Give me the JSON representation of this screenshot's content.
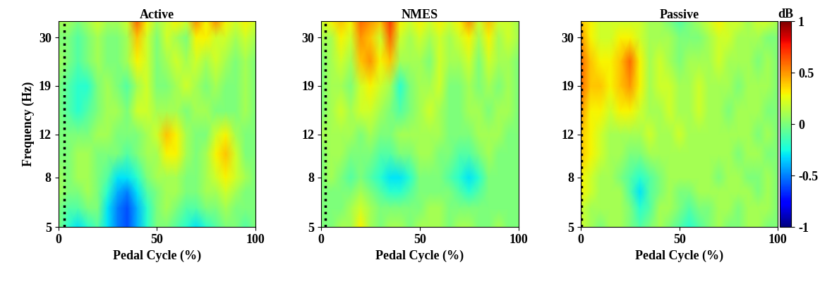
{
  "chart_data": [
    {
      "type": "heatmap",
      "title": "Active",
      "xlabel": "Pedal Cycle (%)",
      "ylabel": "Frequency (Hz)",
      "color": "jet",
      "log": "y",
      "event_x": 3,
      "line_style": "dotted",
      "x": [
        0,
        5,
        10,
        15,
        20,
        25,
        30,
        35,
        40,
        45,
        50,
        55,
        60,
        65,
        70,
        75,
        80,
        85,
        90,
        95,
        100
      ],
      "y": [
        5,
        6,
        7,
        8,
        10,
        12,
        15,
        19,
        24,
        30,
        35
      ],
      "xlim": [
        0,
        100
      ],
      "xticks": [
        0,
        50,
        100
      ],
      "ylim": [
        5,
        35
      ],
      "yticks": [
        5,
        8,
        12,
        19,
        30
      ],
      "values": [
        [
          0,
          -0.2,
          -0.3,
          -0.2,
          -0.1,
          -0.3,
          -0.5,
          -0.6,
          -0.4,
          -0.2,
          0,
          0,
          -0.1,
          -0.2,
          -0.3,
          -0.2,
          -0.1,
          0,
          0,
          -0.1,
          0
        ],
        [
          0,
          -0.1,
          -0.1,
          0,
          0,
          -0.3,
          -0.5,
          -0.6,
          -0.4,
          -0.2,
          0,
          0.1,
          0,
          -0.1,
          -0.1,
          0,
          0,
          0.1,
          0,
          0,
          0
        ],
        [
          0.1,
          0,
          0,
          0.1,
          0,
          -0.2,
          -0.4,
          -0.5,
          -0.3,
          -0.1,
          0,
          0.1,
          0.1,
          0,
          0,
          0.1,
          0.1,
          0.2,
          0.1,
          0,
          0
        ],
        [
          0.1,
          0,
          0.1,
          0.1,
          0,
          -0.1,
          -0.3,
          -0.3,
          -0.2,
          0,
          0.1,
          0.1,
          0.1,
          0,
          0,
          0.1,
          0.2,
          0.3,
          0.2,
          0.1,
          0
        ],
        [
          0,
          0,
          0.1,
          0.1,
          0,
          0,
          0,
          -0.1,
          0,
          0.1,
          0.1,
          0.3,
          0.3,
          0.1,
          0,
          0.1,
          0.3,
          0.4,
          0.2,
          0,
          0
        ],
        [
          0,
          0,
          0,
          0,
          0.1,
          0.1,
          0,
          0,
          0,
          0.1,
          0.2,
          0.4,
          0.3,
          0.1,
          0,
          0,
          0.2,
          0.3,
          0.1,
          0,
          0
        ],
        [
          0,
          -0.1,
          -0.2,
          -0.1,
          0,
          0.1,
          0.1,
          0,
          0.2,
          0.2,
          0.1,
          0.1,
          0.1,
          0,
          0.1,
          0.1,
          0,
          0,
          0,
          0.1,
          0
        ],
        [
          0,
          -0.1,
          -0.2,
          -0.2,
          0,
          0.1,
          0,
          -0.1,
          0.1,
          0.2,
          0,
          0,
          0.1,
          0.2,
          0.1,
          0,
          0.1,
          0,
          0,
          0.1,
          0
        ],
        [
          0.1,
          0,
          -0.1,
          0,
          0.1,
          0,
          0,
          0.1,
          0.3,
          0.2,
          0,
          0.1,
          0.2,
          0.1,
          0.2,
          0.1,
          0.2,
          0.1,
          0,
          0.1,
          0
        ],
        [
          0,
          0,
          -0.1,
          0,
          0.1,
          0,
          0,
          0.1,
          0.4,
          0.2,
          0,
          0.2,
          0.1,
          0,
          0.3,
          0.3,
          0.2,
          0.2,
          0.1,
          0.2,
          0.1
        ],
        [
          0.1,
          0.1,
          0,
          0.1,
          0.2,
          0.1,
          0.1,
          0.2,
          0.6,
          0.3,
          0.1,
          0.2,
          0.3,
          0.2,
          0.5,
          0.3,
          0.5,
          0.3,
          0.2,
          0.3,
          0.2
        ]
      ]
    },
    {
      "type": "heatmap",
      "title": "NMES",
      "xlabel": "Pedal Cycle (%)",
      "color": "jet",
      "log": "y",
      "event_x": 2,
      "line_style": "dotted",
      "x": [
        0,
        5,
        10,
        15,
        20,
        25,
        30,
        35,
        40,
        45,
        50,
        55,
        60,
        65,
        70,
        75,
        80,
        85,
        90,
        95,
        100
      ],
      "y": [
        5,
        6,
        7,
        8,
        10,
        12,
        15,
        19,
        24,
        30,
        35
      ],
      "xlim": [
        0,
        100
      ],
      "xticks": [
        0,
        50,
        100
      ],
      "ylim": [
        5,
        35
      ],
      "yticks": [
        5,
        8,
        12,
        19,
        30
      ],
      "values": [
        [
          0,
          0,
          0.1,
          0.1,
          0.3,
          0.1,
          0,
          0.1,
          0.1,
          0,
          0.1,
          0.1,
          0.1,
          0,
          0.1,
          0.1,
          0,
          0,
          0.1,
          0,
          0
        ],
        [
          0,
          0,
          0,
          0.1,
          0.2,
          0.1,
          0,
          0,
          0,
          0,
          0,
          0.1,
          0.1,
          0,
          0,
          0,
          0,
          0,
          0,
          0,
          0
        ],
        [
          0,
          0,
          0,
          0,
          0.1,
          0,
          -0.1,
          -0.2,
          -0.2,
          -0.1,
          0,
          0,
          0,
          0,
          -0.1,
          -0.2,
          -0.1,
          0,
          0,
          0,
          0
        ],
        [
          0,
          0.1,
          0,
          -0.1,
          0,
          -0.1,
          -0.2,
          -0.3,
          -0.3,
          -0.2,
          0,
          0,
          0,
          -0.1,
          -0.2,
          -0.3,
          -0.2,
          0,
          0,
          0,
          0
        ],
        [
          0,
          0.1,
          0.1,
          0,
          0,
          0,
          -0.1,
          -0.1,
          0,
          0,
          0.1,
          0.1,
          0,
          0,
          -0.1,
          -0.1,
          0,
          0.1,
          0,
          0,
          0
        ],
        [
          0.1,
          0.1,
          0.1,
          0.1,
          0,
          0.1,
          0,
          0,
          0.1,
          0.1,
          0.1,
          0.1,
          0.1,
          0,
          0,
          0,
          0.1,
          0.1,
          0.1,
          0,
          0
        ],
        [
          0,
          0.1,
          0.2,
          0.1,
          0.2,
          0.2,
          0.1,
          0,
          -0.1,
          0,
          0.1,
          0.2,
          0.1,
          0,
          0,
          0.1,
          0.1,
          0,
          0.1,
          0.1,
          0
        ],
        [
          0,
          0.1,
          0.1,
          0,
          0.2,
          0.3,
          0.2,
          0.1,
          -0.2,
          0,
          0.1,
          0.1,
          0.2,
          0,
          0,
          0.1,
          0,
          0.1,
          0,
          0.1,
          0
        ],
        [
          0,
          0.1,
          0.2,
          0.1,
          0.4,
          0.5,
          0.3,
          0.4,
          0.1,
          0.1,
          0.1,
          0,
          0.2,
          0.1,
          0.1,
          0.2,
          0,
          0.2,
          0.1,
          0.1,
          0
        ],
        [
          0.1,
          0.1,
          0.3,
          0.2,
          0.5,
          0.4,
          0.2,
          0.6,
          0.2,
          0.1,
          0.2,
          0.1,
          0.2,
          0.1,
          0.2,
          0.3,
          0.1,
          0.3,
          0.1,
          0.2,
          0.1
        ],
        [
          0.2,
          0.3,
          0.4,
          0.3,
          0.6,
          0.5,
          0.4,
          0.7,
          0.3,
          0.2,
          0.3,
          0.2,
          0.3,
          0.2,
          0.3,
          0.5,
          0.2,
          0.4,
          0.2,
          0.2,
          0.1
        ]
      ]
    },
    {
      "type": "heatmap",
      "title": "Passive",
      "xlabel": "Pedal Cycle (%)",
      "color": "jet",
      "log": "y",
      "event_x": 0.5,
      "line_style": "dotted",
      "x": [
        0,
        5,
        10,
        15,
        20,
        25,
        30,
        35,
        40,
        45,
        50,
        55,
        60,
        65,
        70,
        75,
        80,
        85,
        90,
        95,
        100
      ],
      "y": [
        5,
        6,
        7,
        8,
        10,
        12,
        15,
        19,
        24,
        30,
        35
      ],
      "xlim": [
        0,
        100
      ],
      "xticks": [
        0,
        50,
        100
      ],
      "ylim": [
        5,
        35
      ],
      "yticks": [
        5,
        8,
        12,
        19,
        30
      ],
      "colorbar": {
        "lim": [
          -1,
          1
        ],
        "ticks": [
          -1,
          -0.5,
          0,
          0.5,
          1
        ],
        "label": "dB"
      },
      "values": [
        [
          0.2,
          0.1,
          0,
          0.1,
          0.1,
          0,
          -0.1,
          0,
          0.1,
          0,
          -0.1,
          -0.2,
          -0.1,
          0,
          0.1,
          0,
          0,
          0.1,
          0.1,
          0,
          0
        ],
        [
          0.2,
          0.1,
          0.1,
          0.1,
          0.1,
          0,
          -0.2,
          -0.1,
          0.1,
          0.1,
          0,
          -0.1,
          0,
          0,
          0.1,
          0.1,
          0,
          0.1,
          0.1,
          0.1,
          0
        ],
        [
          0.3,
          0.2,
          0.1,
          0.1,
          0.1,
          -0.1,
          -0.3,
          -0.1,
          0,
          0.1,
          0,
          0,
          0.1,
          0.1,
          0.1,
          0.1,
          0.1,
          0.1,
          0,
          0.1,
          0
        ],
        [
          0.3,
          0.2,
          0.1,
          0.1,
          0,
          -0.1,
          -0.2,
          -0.1,
          0,
          0.1,
          0.1,
          0.1,
          0.1,
          0.1,
          0,
          0.1,
          0.1,
          0,
          0,
          0.1,
          0
        ],
        [
          0.4,
          0.3,
          0.2,
          0.1,
          0.1,
          0,
          0,
          0.1,
          0.1,
          0.1,
          0.1,
          0.1,
          0.1,
          0.1,
          0.1,
          0.1,
          0,
          0.1,
          0.1,
          0,
          0
        ],
        [
          0.4,
          0.3,
          0.2,
          0.1,
          0.1,
          0.1,
          0.1,
          0.2,
          0.1,
          0.1,
          0.2,
          0.1,
          0.1,
          0.1,
          0.1,
          0.1,
          0.1,
          0.1,
          0,
          0.1,
          0
        ],
        [
          0.5,
          0.3,
          0.3,
          0.2,
          0.3,
          0.3,
          0.2,
          0.1,
          0.1,
          0.2,
          0.1,
          0.1,
          0.2,
          0.1,
          0.1,
          0,
          0.1,
          0.1,
          0.1,
          0,
          0
        ],
        [
          0.6,
          0.4,
          0.4,
          0.3,
          0.4,
          0.5,
          0.3,
          0.1,
          0.2,
          0.2,
          0.1,
          0.1,
          0.2,
          0.1,
          0.1,
          0.1,
          0,
          0.1,
          0.1,
          0.1,
          0
        ],
        [
          0.6,
          0.4,
          0.3,
          0.3,
          0.4,
          0.6,
          0.3,
          0.1,
          0.2,
          0.1,
          0,
          0.1,
          0.1,
          0.1,
          0.2,
          0.1,
          0.1,
          0.1,
          0,
          0.1,
          0
        ],
        [
          0.5,
          0.3,
          0.2,
          0.2,
          0.3,
          0.3,
          0.2,
          0.1,
          0.1,
          0.1,
          0,
          0,
          0,
          0.1,
          0.2,
          0.2,
          0.1,
          0.1,
          0.1,
          0,
          0
        ],
        [
          0.4,
          0.3,
          0.2,
          0.2,
          0.2,
          0.2,
          0.2,
          0.1,
          0.1,
          0,
          -0.1,
          0,
          0.1,
          0.2,
          0.3,
          0.2,
          0.2,
          0.1,
          0.2,
          0.2,
          0.1
        ]
      ]
    }
  ]
}
